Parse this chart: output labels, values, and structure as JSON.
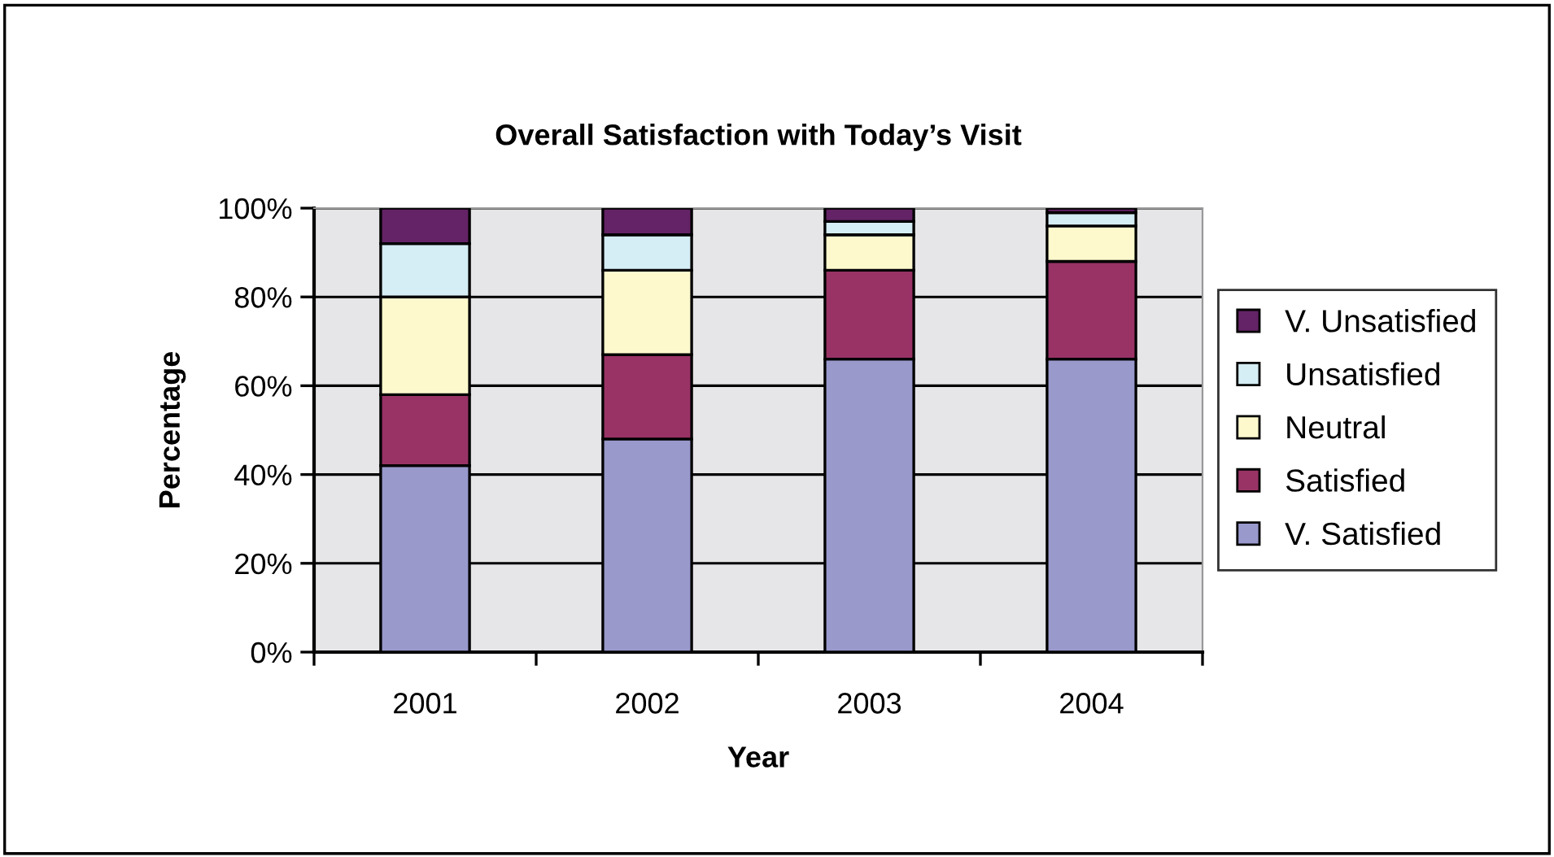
{
  "chart_data": {
    "type": "bar",
    "title": "Overall Satisfaction with Today’s Visit",
    "xlabel": "Year",
    "ylabel": "Percentage",
    "categories": [
      "2001",
      "2002",
      "2003",
      "2004"
    ],
    "stacked": true,
    "series": [
      {
        "name": "V. Satisfied",
        "color": "#9999cc",
        "values": [
          42,
          48,
          66,
          66
        ]
      },
      {
        "name": "Satisfied",
        "color": "#993366",
        "values": [
          16,
          19,
          20,
          22
        ]
      },
      {
        "name": "Neutral",
        "color": "#fdf9cd",
        "values": [
          22,
          19,
          8,
          8
        ]
      },
      {
        "name": "Unsatisfied",
        "color": "#d5edf4",
        "values": [
          12,
          8,
          3,
          3
        ]
      },
      {
        "name": "V. Unsatisfied",
        "color": "#642366",
        "values": [
          8,
          6,
          3,
          1
        ]
      }
    ],
    "ylim": [
      0,
      100
    ],
    "yticks": [
      {
        "value": 0,
        "label": "0%"
      },
      {
        "value": 20,
        "label": "20%"
      },
      {
        "value": 40,
        "label": "40%"
      },
      {
        "value": 60,
        "label": "60%"
      },
      {
        "value": 80,
        "label": "80%"
      },
      {
        "value": 100,
        "label": "100%"
      }
    ],
    "grid": "y",
    "legend": "right"
  }
}
